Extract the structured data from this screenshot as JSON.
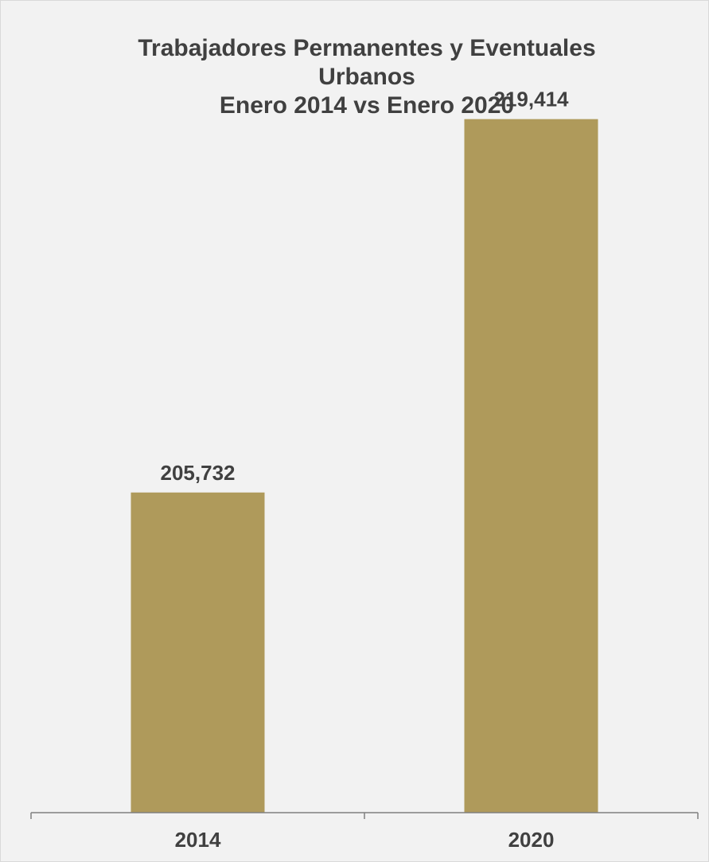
{
  "chart_data": {
    "type": "bar",
    "title": "Trabajadores Permanentes y Eventuales\nUrbanos\nEnero 2014 vs Enero 2020",
    "categories": [
      "2014",
      "2020"
    ],
    "values": [
      205732,
      219414
    ],
    "data_labels": [
      "205,732",
      "219,414"
    ],
    "xlabel": "",
    "ylabel": "",
    "ylim": [
      194000,
      222000
    ],
    "grid": false,
    "legend": "none",
    "bar_color": "#af9a5b",
    "background_color": "#f2f2f2",
    "text_color": "#404040",
    "axis_color": "#808080"
  }
}
